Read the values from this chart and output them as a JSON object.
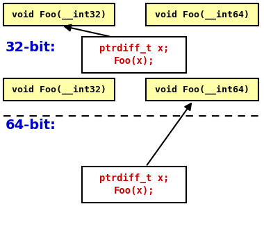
{
  "bg_color": "#ffffff",
  "yellow_fill": "#ffffaa",
  "yellow_edge": "#000000",
  "white_fill": "#ffffff",
  "white_edge": "#000000",
  "red_text": "#cc0000",
  "blue_text": "#0000cc",
  "black_text": "#000000",
  "top_box1_text": "void Foo(__int32)",
  "top_box2_text": "void Foo(__int64)",
  "top_code_text": "ptrdiff_t x;\nFoo(x);",
  "top_label": "32-bit:",
  "bot_box1_text": "void Foo(__int32)",
  "bot_box2_text": "void Foo(__int64)",
  "bot_code_text": "ptrdiff_t x;\nFoo(x);",
  "bot_label": "64-bit:",
  "fig_width": 3.8,
  "fig_height": 3.3,
  "dpi": 100
}
